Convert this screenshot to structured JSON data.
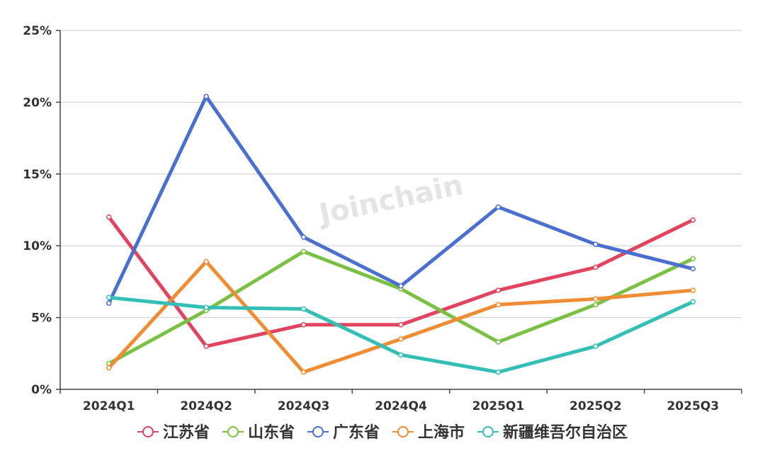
{
  "watermark": "Joinchain",
  "chart_data": {
    "type": "line",
    "categories": [
      "2024Q1",
      "2024Q2",
      "2024Q3",
      "2024Q4",
      "2025Q1",
      "2025Q2",
      "2025Q3"
    ],
    "ylim": [
      0,
      25
    ],
    "yticks": [
      0,
      5,
      10,
      15,
      20,
      25
    ],
    "ytick_labels": [
      "0%",
      "5%",
      "10%",
      "15%",
      "20%",
      "25%"
    ],
    "grid": true,
    "legend_position": "bottom",
    "series": [
      {
        "name": "江苏省",
        "color": "#e0445f",
        "values": [
          12.0,
          3.0,
          4.5,
          4.5,
          6.9,
          8.5,
          11.8
        ]
      },
      {
        "name": "山东省",
        "color": "#7ac143",
        "values": [
          1.8,
          5.5,
          9.6,
          7.0,
          3.3,
          5.9,
          9.1
        ]
      },
      {
        "name": "广东省",
        "color": "#4a6fcf",
        "values": [
          6.0,
          20.4,
          10.6,
          7.2,
          12.7,
          10.1,
          8.4
        ]
      },
      {
        "name": "上海市",
        "color": "#ef8c34",
        "values": [
          1.5,
          8.9,
          1.2,
          3.5,
          5.9,
          6.3,
          6.9
        ]
      },
      {
        "name": "新疆维吾尔自治区",
        "color": "#33bfb5",
        "values": [
          6.4,
          5.7,
          5.6,
          2.4,
          1.2,
          3.0,
          6.1
        ]
      }
    ]
  }
}
